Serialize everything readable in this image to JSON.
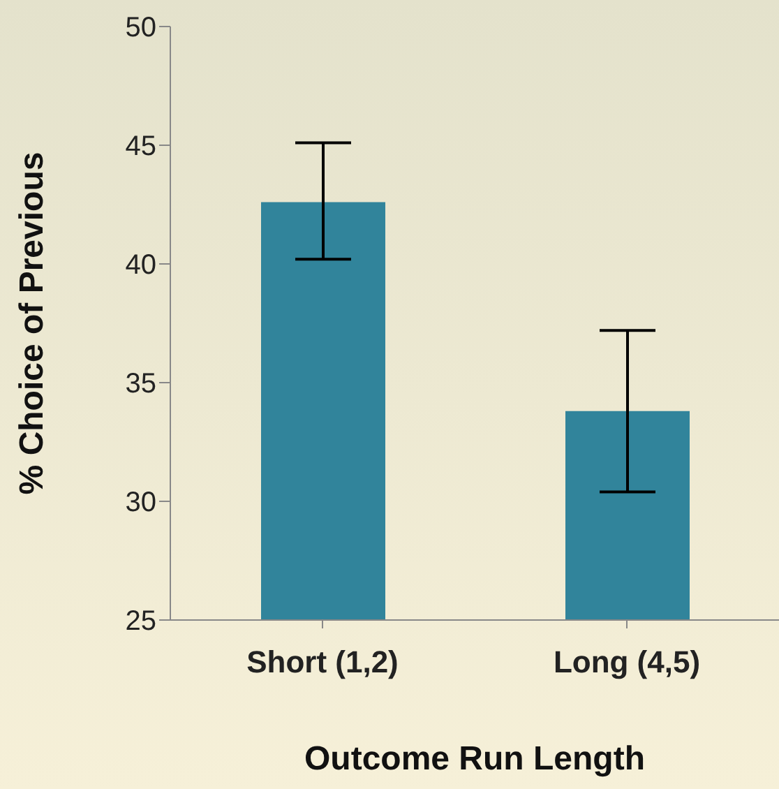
{
  "chart_data": {
    "type": "bar",
    "xlabel": "Outcome Run Length",
    "ylabel": "% Choice of Previous",
    "categories": [
      "Short (1,2)",
      "Long (4,5)"
    ],
    "values": [
      42.6,
      33.8
    ],
    "errors": [
      [
        40.2,
        45.1
      ],
      [
        30.4,
        37.2
      ]
    ],
    "color": "#31849b",
    "ylim": [
      25,
      50
    ],
    "yticks": [
      25,
      30,
      35,
      40,
      45,
      50
    ],
    "grid": false,
    "legend": false
  }
}
